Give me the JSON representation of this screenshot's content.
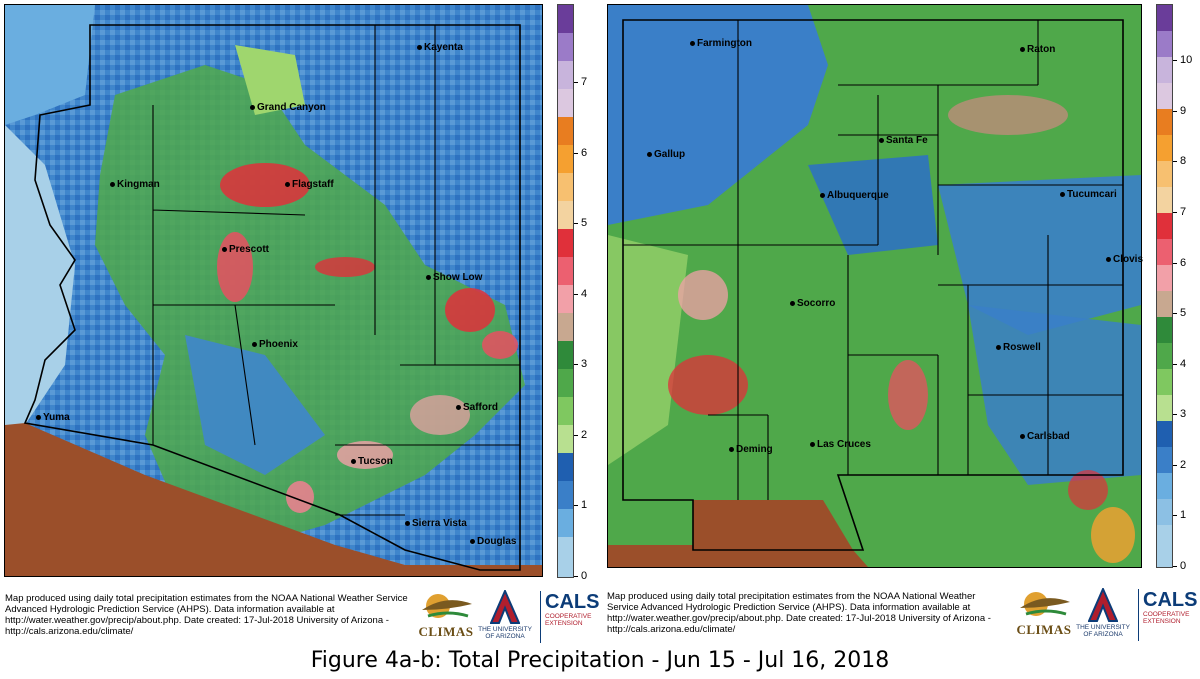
{
  "caption": "Figure 4a-b: Total Precipitation - Jun 15 - Jul 16, 2018",
  "left_map": {
    "cities": [
      {
        "name": "Kayenta"
      },
      {
        "name": "Grand Canyon"
      },
      {
        "name": "Kingman"
      },
      {
        "name": "Flagstaff"
      },
      {
        "name": "Prescott"
      },
      {
        "name": "Show Low"
      },
      {
        "name": "Phoenix"
      },
      {
        "name": "Safford"
      },
      {
        "name": "Yuma"
      },
      {
        "name": "Tucson"
      },
      {
        "name": "Sierra Vista"
      },
      {
        "name": "Douglas"
      }
    ],
    "colorbar_ticks": [
      "0",
      "1",
      "2",
      "3",
      "4",
      "5",
      "6",
      "7"
    ],
    "note": "Map produced using daily total precipitation estimates from the NOAA National Weather Service Advanced Hydrologic Prediction Service (AHPS). Data information available at http://water.weather.gov/precip/about.php. Date created: 17-Jul-2018 University of Arizona - http://cals.arizona.edu/climate/"
  },
  "right_map": {
    "cities": [
      {
        "name": "Farmington"
      },
      {
        "name": "Raton"
      },
      {
        "name": "Gallup"
      },
      {
        "name": "Santa Fe"
      },
      {
        "name": "Albuquerque"
      },
      {
        "name": "Tucumcari"
      },
      {
        "name": "Clovis"
      },
      {
        "name": "Socorro"
      },
      {
        "name": "Roswell"
      },
      {
        "name": "Deming"
      },
      {
        "name": "Las Cruces"
      },
      {
        "name": "Carlsbad"
      }
    ],
    "colorbar_ticks": [
      "0",
      "1",
      "2",
      "3",
      "4",
      "5",
      "6",
      "7",
      "8",
      "9",
      "10"
    ],
    "note": "Map produced using daily total precipitation estimates from the NOAA National Weather Service Advanced Hydrologic Prediction Service (AHPS). Data information available at http://water.weather.gov/precip/about.php. Date created: 17-Jul-2018 University of Arizona - http://cals.arizona.edu/climate/"
  },
  "logos": {
    "climas": "CLIMAS",
    "university": "THE UNIVERSITY OF ARIZONA",
    "cals": "CALS",
    "cals_sub": "COOPERATIVE EXTENSION"
  },
  "colors": {
    "light_blue": "#a8d0e8",
    "blue": "#3a7fc8",
    "dark_blue": "#1f5fb0",
    "green": "#4fa84a",
    "light_green": "#9fd66e",
    "pink": "#f2a0a8",
    "red": "#e0303a",
    "orange": "#f5a030",
    "purple": "#7b4fa8",
    "mexico_brown": "#9b4f2a"
  }
}
